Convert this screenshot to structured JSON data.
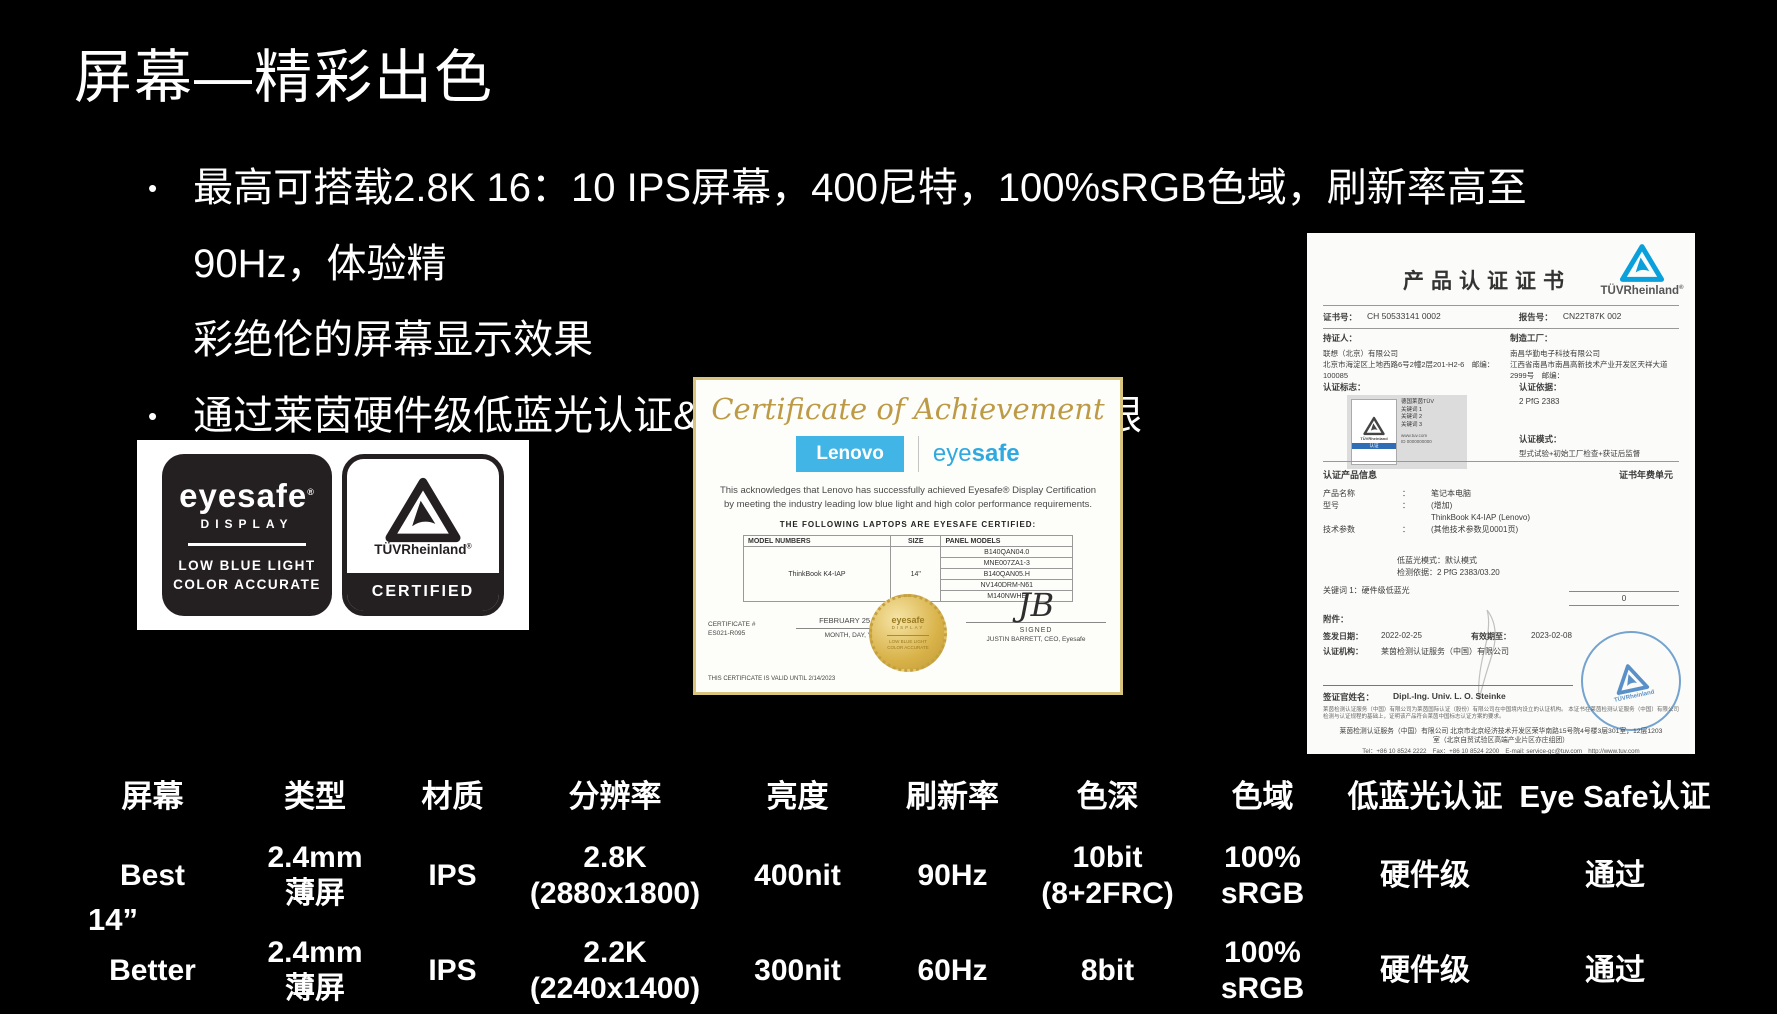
{
  "slide": {
    "title": "屏幕—精彩出色",
    "bullet1": "最高可搭载2.8K 16：10 IPS屏幕，400尼特，100%sRGB色域，刷新率高至90Hz，体验精\n彩绝伦的屏幕显示效果",
    "bullet2": "通过莱茵硬件级低蓝光认证&Eye Safe认证，呵护双眼"
  },
  "colors": {
    "background": "#000000",
    "lenovo_blue": "#41b6e6",
    "eyesafe_blue": "#2fa9e0",
    "certificate_gold": "#bd9a45",
    "tuv_blue": "#0aa0dc"
  },
  "eyesafe_badge": {
    "brand": "eyesafe",
    "reg": "®",
    "display": "DISPLAY",
    "line1": "LOW BLUE LIGHT",
    "line2": "COLOR ACCURATE",
    "tuv_name": "TÜVRheinland",
    "certified": "CERTIFIED"
  },
  "achievement_cert": {
    "title": "Certificate of Achievement",
    "lenovo": "Lenovo",
    "eyesafe_light": "eye",
    "eyesafe_bold": "safe",
    "body1": "This acknowledges that Lenovo has successfully achieved Eyesafe® Display Certification",
    "body2": "by meeting the industry leading low blue light and high color performance requirements.",
    "caption": "THE FOLLOWING LAPTOPS ARE EYESAFE CERTIFIED:",
    "columns": [
      "MODEL NUMBERS",
      "SIZE",
      "PANEL MODELS"
    ],
    "model": "ThinkBook K4-IAP",
    "size": "14\"",
    "panels": [
      "B140QAN04.0",
      "MNE007ZA1-3",
      "B140QAN05.H",
      "NV140DRM-N61",
      "M140NWHE"
    ],
    "cert_label": "CERTIFICATE #",
    "cert_number": "ES021-R095",
    "date": "FEBRUARY 25, 2022",
    "date_caption": "MONTH, DAY, YEAR",
    "valid_until": "THIS CERTIFICATE IS VALID UNTIL 2/14/2023",
    "seal_brand": "eyesafe",
    "seal_display": "DISPLAY",
    "seal_lines": "LOW BLUE LIGHT\nCOLOR ACCURATE",
    "signature": "JB",
    "signed": "SIGNED",
    "signer": "JUSTIN BARRETT, CEO, Eyesafe"
  },
  "tuv_cert": {
    "title": "产品认证证书",
    "logo_name": "TÜVRheinland",
    "cert_no_label": "证书号：",
    "cert_no": "CH 50533141 0002",
    "report_label": "报告号：",
    "report_no": "CN22T87K 002",
    "holder_label": "持证人：",
    "holder_name": "联想（北京）有限公司",
    "holder_addr": "北京市海淀区上地西路6号2幢2层201-H2-6　邮编：100085",
    "factory_label": "制造工厂：",
    "factory_name": "南昌华勤电子科技有限公司",
    "factory_addr": "江西省南昌市南昌高新技术产业开发区天祥大道2999号　邮编：",
    "mark_label": "认证标志：",
    "mark_mini_name": "TÜVRheinland",
    "mark_mini_bar": "认证",
    "mark_lines": [
      "德国莱茵TÜV",
      "关键词 1",
      "关键词 2",
      "关键词 3"
    ],
    "mark_www": "www.tuv.com\nID 0000000000",
    "basis_label": "认证依据：",
    "basis": "2 PfG 2383",
    "mode_label": "认证模式：",
    "mode": "型式试验+初始工厂检查+获证后监督",
    "product_info": "认证产品信息",
    "fee_unit": "证书年费单元",
    "product_name_label": "产品名称",
    "colon": "：",
    "product_name": "笔记本电脑",
    "model_label": "型号",
    "model_value": "(增加)\nThinkBook K4-IAP (Lenovo)",
    "tech_label": "技术参数",
    "tech_value": "(其他技术参数见0001页)",
    "lowblue_mode": "低蓝光模式：默认模式",
    "test_basis": "检测依据：2 PfG 2383/03.20",
    "keyword": "关键词 1：硬件级低蓝光",
    "page_no": "0",
    "attach_label": "附件：",
    "issue_label": "签发日期：",
    "issue_date": "2022-02-25",
    "valid_label": "有效期至：",
    "valid_date": "2023-02-08",
    "org_label": "认证机构：",
    "org": "莱茵检测认证服务（中国）有限公司",
    "stamp_text": "TÜVRheinland",
    "officer_label": "签证官姓名：",
    "officer": "Dipl.-Ing. Univ. L. O. Steinke",
    "fine_print": "莱茵检测认证服务（中国）有限公司为莱茵国际认证（股份）有限公司在中国境内设立的认证机构。 本证书在莱茵检测认证服务（中国）有限公司检测与认证规程的基础上，证明该产品符合莱茵中国标志认证方案的要求。",
    "addr": "莱茵检测认证服务（中国）有限公司 北京市北京经济技术开发区荣华南路15号院4号楼3层301室，12层1203\n室（北京自贸试验区高端产业片区亦庄组团）",
    "contact": "Tel：+86 10 8524 2222　Fax：+86 10 8524 2200　E-mail: service-gc@tuv.com　http://www.tuv.com"
  },
  "spec_table": {
    "size_label": "14”",
    "headers": [
      "屏幕",
      "类型",
      "材质",
      "分辨率",
      "亮度",
      "刷新率",
      "色深",
      "色域",
      "低蓝光认证",
      "Eye Safe认证"
    ],
    "rows": [
      [
        "Best",
        "2.4mm\n薄屏",
        "IPS",
        "2.8K (2880x1800)",
        "400nit",
        "90Hz",
        "10bit\n(8+2FRC)",
        "100%\nsRGB",
        "硬件级",
        "通过"
      ],
      [
        "Better",
        "2.4mm\n薄屏",
        "IPS",
        "2.2K (2240x1400)",
        "300nit",
        "60Hz",
        "8bit",
        "100%\nsRGB",
        "硬件级",
        "通过"
      ]
    ]
  }
}
